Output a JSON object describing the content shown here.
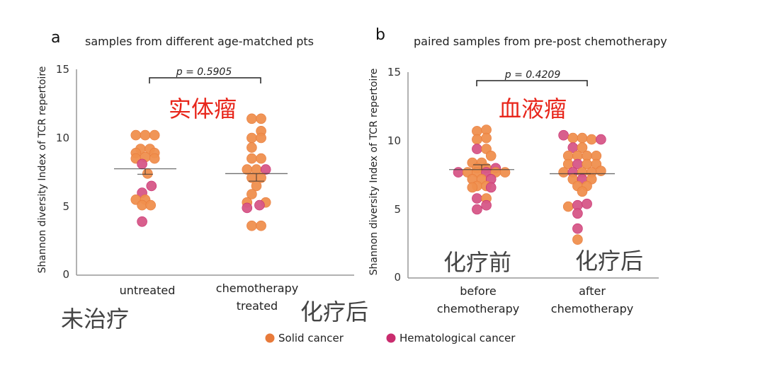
{
  "colors": {
    "solid": "#ef8f4e",
    "solid_dark": "#e87a3a",
    "hemato": "#d65687",
    "hemato_dark": "#c92c6e",
    "annotation_red": "#e8261b",
    "annotation_gray": "#444444"
  },
  "legend": {
    "solid": "Solid cancer",
    "hemato": "Hematological cancer"
  },
  "chart_data": [
    {
      "type": "scatter",
      "panel_letter": "a",
      "title": "samples from different age-matched pts",
      "ylabel": "Shannon diversity Index of TCR repertoire",
      "ylim": [
        0,
        15
      ],
      "yticks": [
        "0",
        "5",
        "10",
        "15"
      ],
      "categories": [
        "untreated",
        "chemotherapy treated"
      ],
      "category_lines": [
        [
          "untreated"
        ],
        [
          "chemotherapy",
          "treated"
        ]
      ],
      "pvalue": "p = 0.5905",
      "annotation_red": "实体瘤",
      "annotations_gray": [
        "未治疗",
        "化疗后"
      ],
      "groups": [
        {
          "name": "untreated",
          "mean": 7.75,
          "sem_low": 7.35,
          "points": [
            {
              "x": -0.6,
              "y": 10.2,
              "type": "solid"
            },
            {
              "x": 0,
              "y": 10.2,
              "type": "solid"
            },
            {
              "x": 0.6,
              "y": 10.2,
              "type": "solid"
            },
            {
              "x": -0.3,
              "y": 9.2,
              "type": "solid"
            },
            {
              "x": 0.3,
              "y": 9.2,
              "type": "solid"
            },
            {
              "x": -0.6,
              "y": 8.9,
              "type": "solid"
            },
            {
              "x": 0.6,
              "y": 8.9,
              "type": "solid"
            },
            {
              "x": -0.6,
              "y": 8.5,
              "type": "solid"
            },
            {
              "x": 0,
              "y": 8.6,
              "type": "solid"
            },
            {
              "x": 0.6,
              "y": 8.5,
              "type": "solid"
            },
            {
              "x": -0.2,
              "y": 8.1,
              "type": "hemato"
            },
            {
              "x": 0.15,
              "y": 7.4,
              "type": "solid"
            },
            {
              "x": 0.4,
              "y": 6.5,
              "type": "hemato"
            },
            {
              "x": -0.2,
              "y": 6.0,
              "type": "hemato"
            },
            {
              "x": -0.6,
              "y": 5.5,
              "type": "solid"
            },
            {
              "x": 0,
              "y": 5.5,
              "type": "solid"
            },
            {
              "x": -0.2,
              "y": 5.1,
              "type": "solid"
            },
            {
              "x": 0.35,
              "y": 5.1,
              "type": "solid"
            },
            {
              "x": -0.2,
              "y": 3.9,
              "type": "hemato"
            }
          ]
        },
        {
          "name": "chemotherapy treated",
          "mean": 7.4,
          "sem_low": 6.85,
          "points": [
            {
              "x": -0.3,
              "y": 11.4,
              "type": "solid"
            },
            {
              "x": 0.3,
              "y": 11.4,
              "type": "solid"
            },
            {
              "x": 0.3,
              "y": 10.5,
              "type": "solid"
            },
            {
              "x": -0.3,
              "y": 10.0,
              "type": "solid"
            },
            {
              "x": 0.3,
              "y": 10.0,
              "type": "solid"
            },
            {
              "x": -0.3,
              "y": 9.3,
              "type": "solid"
            },
            {
              "x": -0.3,
              "y": 8.5,
              "type": "solid"
            },
            {
              "x": 0.3,
              "y": 8.5,
              "type": "solid"
            },
            {
              "x": -0.6,
              "y": 7.7,
              "type": "solid"
            },
            {
              "x": 0,
              "y": 7.7,
              "type": "solid"
            },
            {
              "x": 0.6,
              "y": 7.7,
              "type": "hemato"
            },
            {
              "x": -0.3,
              "y": 7.1,
              "type": "solid"
            },
            {
              "x": 0.3,
              "y": 7.1,
              "type": "solid"
            },
            {
              "x": 0,
              "y": 6.5,
              "type": "solid"
            },
            {
              "x": -0.3,
              "y": 5.9,
              "type": "solid"
            },
            {
              "x": -0.6,
              "y": 5.3,
              "type": "solid"
            },
            {
              "x": 0.6,
              "y": 5.3,
              "type": "solid"
            },
            {
              "x": -0.6,
              "y": 4.9,
              "type": "hemato"
            },
            {
              "x": 0.2,
              "y": 5.1,
              "type": "hemato"
            },
            {
              "x": -0.3,
              "y": 3.6,
              "type": "solid"
            },
            {
              "x": 0.3,
              "y": 3.6,
              "type": "solid"
            }
          ]
        }
      ]
    },
    {
      "type": "scatter",
      "panel_letter": "b",
      "title": "paired samples from pre-post chemotherapy",
      "ylabel": "Shannon diversity Index of TCR repertoire",
      "ylim": [
        0,
        15
      ],
      "yticks": [
        "0",
        "5",
        "10",
        "15"
      ],
      "categories": [
        "before chemotherapy",
        "after chemotherapy"
      ],
      "category_lines": [
        [
          "before",
          "chemotherapy"
        ],
        [
          "after",
          "chemotherapy"
        ]
      ],
      "pvalue": "p = 0.4209",
      "annotation_red": "血液瘤",
      "annotations_gray": [
        "化疗前",
        "化疗后"
      ],
      "groups": [
        {
          "name": "before chemotherapy",
          "mean": 7.9,
          "sem_low": 8.25,
          "points": [
            {
              "x": -0.3,
              "y": 10.7,
              "type": "solid"
            },
            {
              "x": 0.3,
              "y": 10.8,
              "type": "solid"
            },
            {
              "x": -0.3,
              "y": 10.1,
              "type": "solid"
            },
            {
              "x": 0.3,
              "y": 10.2,
              "type": "solid"
            },
            {
              "x": -0.3,
              "y": 9.4,
              "type": "hemato"
            },
            {
              "x": 0.3,
              "y": 9.4,
              "type": "solid"
            },
            {
              "x": 0.6,
              "y": 8.9,
              "type": "solid"
            },
            {
              "x": -0.6,
              "y": 8.4,
              "type": "solid"
            },
            {
              "x": 0,
              "y": 8.4,
              "type": "solid"
            },
            {
              "x": -0.3,
              "y": 8.0,
              "type": "solid"
            },
            {
              "x": 0.3,
              "y": 8.0,
              "type": "solid"
            },
            {
              "x": 0.9,
              "y": 8.0,
              "type": "hemato"
            },
            {
              "x": -1.5,
              "y": 7.7,
              "type": "hemato"
            },
            {
              "x": -0.9,
              "y": 7.7,
              "type": "solid"
            },
            {
              "x": -0.3,
              "y": 7.7,
              "type": "solid"
            },
            {
              "x": 0.3,
              "y": 7.7,
              "type": "hemato"
            },
            {
              "x": 0.9,
              "y": 7.7,
              "type": "solid"
            },
            {
              "x": 1.5,
              "y": 7.7,
              "type": "solid"
            },
            {
              "x": -0.6,
              "y": 7.2,
              "type": "solid"
            },
            {
              "x": 0,
              "y": 7.2,
              "type": "solid"
            },
            {
              "x": 0.6,
              "y": 7.2,
              "type": "hemato"
            },
            {
              "x": -0.3,
              "y": 6.7,
              "type": "solid"
            },
            {
              "x": 0.3,
              "y": 6.7,
              "type": "solid"
            },
            {
              "x": -0.6,
              "y": 6.6,
              "type": "solid"
            },
            {
              "x": 0.6,
              "y": 6.6,
              "type": "hemato"
            },
            {
              "x": -0.3,
              "y": 5.8,
              "type": "hemato"
            },
            {
              "x": 0.3,
              "y": 5.8,
              "type": "solid"
            },
            {
              "x": 0.3,
              "y": 5.3,
              "type": "hemato"
            },
            {
              "x": -0.3,
              "y": 5.0,
              "type": "hemato"
            }
          ]
        },
        {
          "name": "after chemotherapy",
          "mean": 7.6,
          "sem_low": 7.6,
          "points": [
            {
              "x": -1.2,
              "y": 10.4,
              "type": "hemato"
            },
            {
              "x": -0.6,
              "y": 10.2,
              "type": "solid"
            },
            {
              "x": 0,
              "y": 10.2,
              "type": "solid"
            },
            {
              "x": 0.6,
              "y": 10.1,
              "type": "solid"
            },
            {
              "x": 1.2,
              "y": 10.1,
              "type": "hemato"
            },
            {
              "x": -0.6,
              "y": 9.5,
              "type": "hemato"
            },
            {
              "x": 0,
              "y": 9.5,
              "type": "solid"
            },
            {
              "x": -0.9,
              "y": 8.9,
              "type": "solid"
            },
            {
              "x": -0.3,
              "y": 8.9,
              "type": "solid"
            },
            {
              "x": 0.3,
              "y": 8.9,
              "type": "solid"
            },
            {
              "x": 0.9,
              "y": 8.9,
              "type": "solid"
            },
            {
              "x": -0.9,
              "y": 8.3,
              "type": "solid"
            },
            {
              "x": -0.3,
              "y": 8.3,
              "type": "hemato"
            },
            {
              "x": 0.3,
              "y": 8.3,
              "type": "solid"
            },
            {
              "x": 0.9,
              "y": 8.3,
              "type": "solid"
            },
            {
              "x": -1.2,
              "y": 7.7,
              "type": "solid"
            },
            {
              "x": -0.6,
              "y": 7.7,
              "type": "hemato"
            },
            {
              "x": 0,
              "y": 7.7,
              "type": "solid"
            },
            {
              "x": 0.6,
              "y": 7.7,
              "type": "solid"
            },
            {
              "x": 1.2,
              "y": 7.8,
              "type": "solid"
            },
            {
              "x": -0.6,
              "y": 7.2,
              "type": "solid"
            },
            {
              "x": 0,
              "y": 7.2,
              "type": "hemato"
            },
            {
              "x": 0.6,
              "y": 7.2,
              "type": "solid"
            },
            {
              "x": -0.3,
              "y": 6.7,
              "type": "solid"
            },
            {
              "x": 0.3,
              "y": 6.7,
              "type": "solid"
            },
            {
              "x": 0,
              "y": 6.3,
              "type": "solid"
            },
            {
              "x": -0.9,
              "y": 5.2,
              "type": "solid"
            },
            {
              "x": -0.3,
              "y": 5.3,
              "type": "hemato"
            },
            {
              "x": 0.3,
              "y": 5.4,
              "type": "hemato"
            },
            {
              "x": -0.3,
              "y": 4.7,
              "type": "hemato"
            },
            {
              "x": -0.3,
              "y": 3.6,
              "type": "hemato"
            },
            {
              "x": -0.3,
              "y": 2.8,
              "type": "solid"
            }
          ]
        }
      ]
    }
  ]
}
